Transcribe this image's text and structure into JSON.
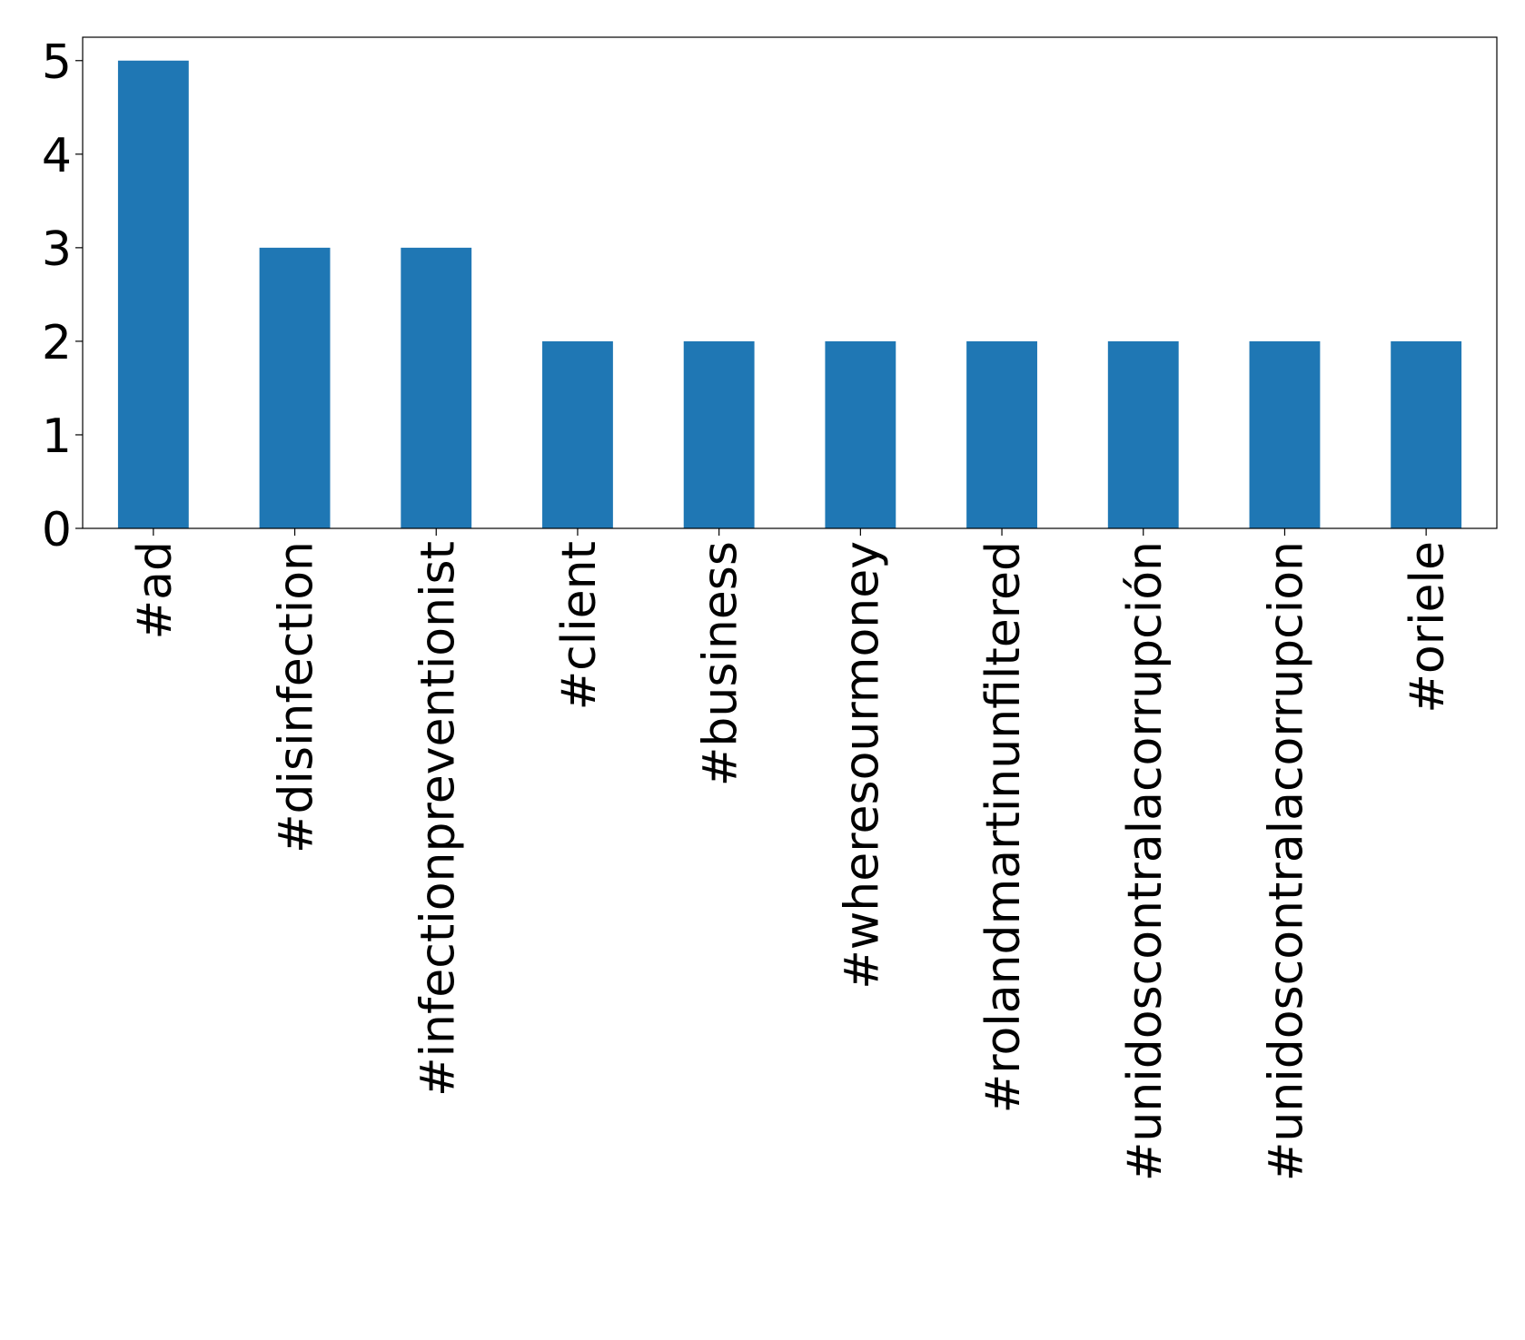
{
  "chart_data": {
    "type": "bar",
    "categories": [
      "#ad",
      "#disinfection",
      "#infectionpreventionist",
      "#client",
      "#business",
      "#wheresourmoney",
      "#rolandmartinunfiltered",
      "#unidoscontralacorrupción",
      "#unidoscontralacorrupcion",
      "#oriele"
    ],
    "values": [
      5,
      3,
      3,
      2,
      2,
      2,
      2,
      2,
      2,
      2
    ],
    "color": "#1f77b4",
    "ylim": [
      0,
      5.25
    ],
    "yticks": [
      0,
      1,
      2,
      3,
      4,
      5
    ],
    "grid": false
  }
}
